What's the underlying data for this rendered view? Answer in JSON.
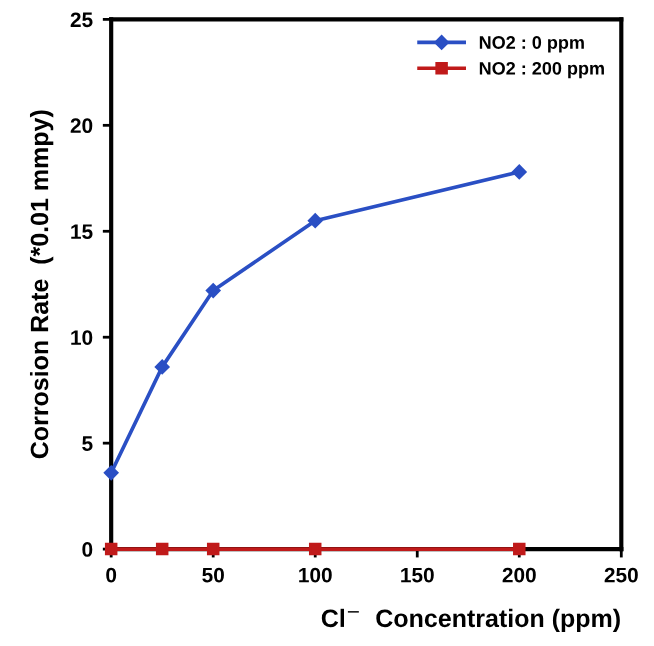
{
  "chart_data": {
    "type": "line",
    "xlabel": "Cl$^{−}$  Concentration (ppm)",
    "ylabel": "Corrosion Rate  (*0.01 mmpy)",
    "x": [
      0,
      25,
      50,
      100,
      200
    ],
    "series": [
      {
        "name": "NO2 : 0 ppm",
        "color": "#2a4fc4",
        "values": [
          3.6,
          8.6,
          12.2,
          15.5,
          17.8
        ],
        "marker": "diamond"
      },
      {
        "name": "NO2 : 200 ppm",
        "color": "#c01a1a",
        "values": [
          0,
          0,
          0,
          0,
          0
        ],
        "marker": "square"
      }
    ],
    "xlim": [
      0,
      250
    ],
    "xticks": [
      0,
      50,
      100,
      150,
      200,
      250
    ],
    "ylim": [
      0,
      25
    ],
    "yticks": [
      0,
      5,
      10,
      15,
      20,
      25
    ],
    "grid": false,
    "legend": "top right",
    "line_style": "solid"
  }
}
